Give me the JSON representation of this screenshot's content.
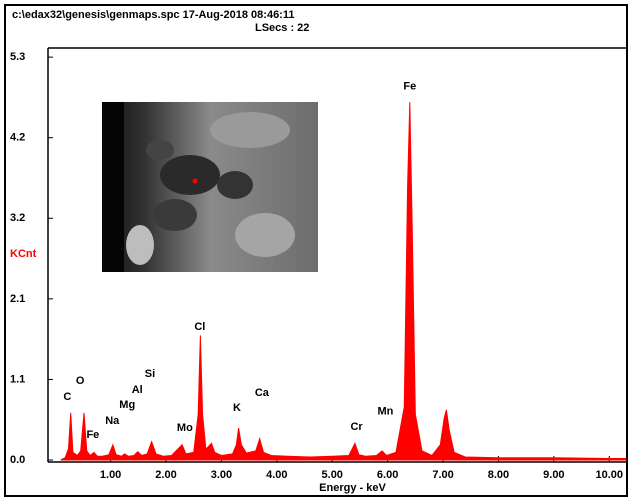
{
  "chart_data": {
    "type": "area",
    "title": "c:\\edax32\\genesis\\genmaps.spc  17-Aug-2018 08:46:11",
    "subtitle": "LSecs : 22",
    "x_label": "Energy - keV",
    "y_label": "KCnt",
    "color": "#ff0000",
    "xlim": [
      -0.13,
      10.32
    ],
    "ylim": [
      0,
      5.42
    ],
    "xticks": [
      {
        "value": 1,
        "label": "1.00"
      },
      {
        "value": 2,
        "label": "2.00"
      },
      {
        "value": 3,
        "label": "3.00"
      },
      {
        "value": 4,
        "label": "4.00"
      },
      {
        "value": 5,
        "label": "5.00"
      },
      {
        "value": 6,
        "label": "6.00"
      },
      {
        "value": 7,
        "label": "7.00"
      },
      {
        "value": 8,
        "label": "8.00"
      },
      {
        "value": 9,
        "label": "9.00"
      },
      {
        "value": 10,
        "label": "10.00"
      }
    ],
    "yticks": [
      {
        "value": 0,
        "label": "0.0"
      },
      {
        "value": 1.06,
        "label": "1.1"
      },
      {
        "value": 2.12,
        "label": "2.1"
      },
      {
        "value": 3.18,
        "label": "3.2"
      },
      {
        "value": 4.24,
        "label": "4.2"
      },
      5.3
    ],
    "x": [
      0.1,
      0.18,
      0.24,
      0.28,
      0.32,
      0.4,
      0.46,
      0.52,
      0.57,
      0.63,
      0.7,
      0.76,
      0.85,
      0.97,
      1.04,
      1.1,
      1.2,
      1.25,
      1.32,
      1.42,
      1.49,
      1.56,
      1.66,
      1.74,
      1.82,
      1.95,
      2.1,
      2.29,
      2.36,
      2.5,
      2.58,
      2.62,
      2.66,
      2.72,
      2.82,
      2.88,
      3.0,
      3.2,
      3.27,
      3.31,
      3.36,
      3.45,
      3.62,
      3.69,
      3.76,
      3.9,
      4.2,
      4.6,
      5.0,
      5.3,
      5.41,
      5.48,
      5.6,
      5.8,
      5.9,
      5.98,
      6.15,
      6.3,
      6.36,
      6.4,
      6.44,
      6.5,
      6.62,
      6.8,
      6.95,
      7.02,
      7.06,
      7.11,
      7.2,
      7.4,
      8.0,
      9.0,
      10.0,
      10.3
    ],
    "values": [
      0.0,
      0.03,
      0.15,
      0.62,
      0.1,
      0.06,
      0.12,
      0.62,
      0.12,
      0.06,
      0.1,
      0.05,
      0.05,
      0.07,
      0.2,
      0.07,
      0.05,
      0.08,
      0.05,
      0.06,
      0.11,
      0.06,
      0.08,
      0.24,
      0.08,
      0.05,
      0.06,
      0.2,
      0.08,
      0.1,
      0.6,
      1.64,
      0.6,
      0.14,
      0.22,
      0.1,
      0.06,
      0.08,
      0.2,
      0.42,
      0.2,
      0.09,
      0.12,
      0.28,
      0.1,
      0.06,
      0.05,
      0.04,
      0.05,
      0.06,
      0.22,
      0.07,
      0.05,
      0.06,
      0.12,
      0.06,
      0.1,
      0.7,
      3.6,
      4.71,
      3.2,
      0.6,
      0.12,
      0.06,
      0.2,
      0.55,
      0.66,
      0.4,
      0.1,
      0.04,
      0.03,
      0.03,
      0.02,
      0.02
    ],
    "annotations": [
      {
        "text": "Fe",
        "x": 6.4,
        "y": 4.91
      },
      {
        "text": "Cl",
        "x": 2.61,
        "y": 1.75
      },
      {
        "text": "C",
        "x": 0.22,
        "y": 0.83
      },
      {
        "text": "O",
        "x": 0.45,
        "y": 1.04
      },
      {
        "text": "Fe",
        "x": 0.68,
        "y": 0.33
      },
      {
        "text": "Na",
        "x": 1.03,
        "y": 0.51
      },
      {
        "text": "Mg",
        "x": 1.3,
        "y": 0.72
      },
      {
        "text": "Al",
        "x": 1.48,
        "y": 0.92
      },
      {
        "text": "Si",
        "x": 1.71,
        "y": 1.13
      },
      {
        "text": "Mo",
        "x": 2.34,
        "y": 0.42
      },
      {
        "text": "K",
        "x": 3.28,
        "y": 0.68
      },
      {
        "text": "Ca",
        "x": 3.73,
        "y": 0.88
      },
      {
        "text": "Cr",
        "x": 5.44,
        "y": 0.43
      },
      {
        "text": "Mn",
        "x": 5.96,
        "y": 0.64
      }
    ]
  }
}
